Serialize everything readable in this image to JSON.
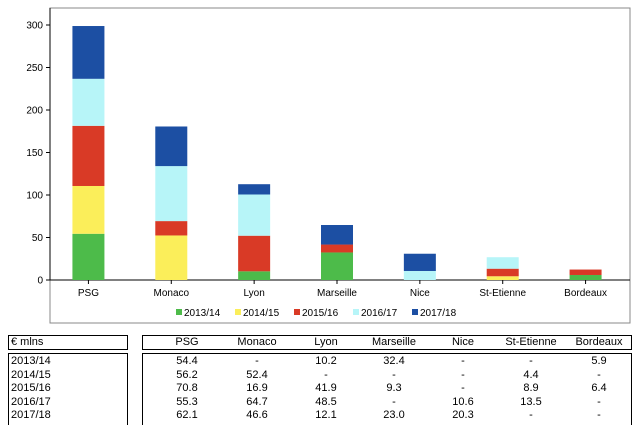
{
  "chart_data": {
    "type": "bar",
    "stacked": true,
    "categories": [
      "PSG",
      "Monaco",
      "Lyon",
      "Marseille",
      "Nice",
      "St-Etienne",
      "Bordeaux"
    ],
    "series": [
      {
        "name": "2013/14",
        "color": "#4dbb4a",
        "values": [
          54.4,
          0,
          10.2,
          32.4,
          0,
          0,
          5.9
        ]
      },
      {
        "name": "2014/15",
        "color": "#fbee5a",
        "values": [
          56.2,
          52.4,
          0,
          0,
          0,
          4.4,
          0
        ]
      },
      {
        "name": "2015/16",
        "color": "#d93a26",
        "values": [
          70.8,
          16.9,
          41.9,
          9.3,
          0,
          8.9,
          6.4
        ]
      },
      {
        "name": "2016/17",
        "color": "#b7f5f8",
        "values": [
          55.3,
          64.7,
          48.5,
          0,
          10.6,
          13.5,
          0
        ]
      },
      {
        "name": "2017/18",
        "color": "#1c4fa3",
        "values": [
          62.1,
          46.6,
          12.1,
          23.0,
          20.3,
          0,
          0
        ]
      }
    ],
    "y_ticks": [
      "0",
      "50",
      "100",
      "150",
      "200",
      "250",
      "300"
    ],
    "ylim": [
      0,
      300
    ],
    "grid": false,
    "legend_position": "bottom"
  },
  "table": {
    "unit_label": "€ mlns",
    "columns": [
      "PSG",
      "Monaco",
      "Lyon",
      "Marseille",
      "Nice",
      "St-Etienne",
      "Bordeaux"
    ],
    "rows": [
      {
        "label": "2013/14",
        "cells": [
          "54.4",
          "-",
          "10.2",
          "32.4",
          "-",
          "-",
          "5.9"
        ]
      },
      {
        "label": "2014/15",
        "cells": [
          "56.2",
          "52.4",
          "-",
          "-",
          "-",
          "4.4",
          "-"
        ]
      },
      {
        "label": "2015/16",
        "cells": [
          "70.8",
          "16.9",
          "41.9",
          "9.3",
          "-",
          "8.9",
          "6.4"
        ]
      },
      {
        "label": "2016/17",
        "cells": [
          "55.3",
          "64.7",
          "48.5",
          "-",
          "10.6",
          "13.5",
          "-"
        ]
      },
      {
        "label": "2017/18",
        "cells": [
          "62.1",
          "46.6",
          "12.1",
          "23.0",
          "20.3",
          "-",
          "-"
        ]
      }
    ]
  }
}
